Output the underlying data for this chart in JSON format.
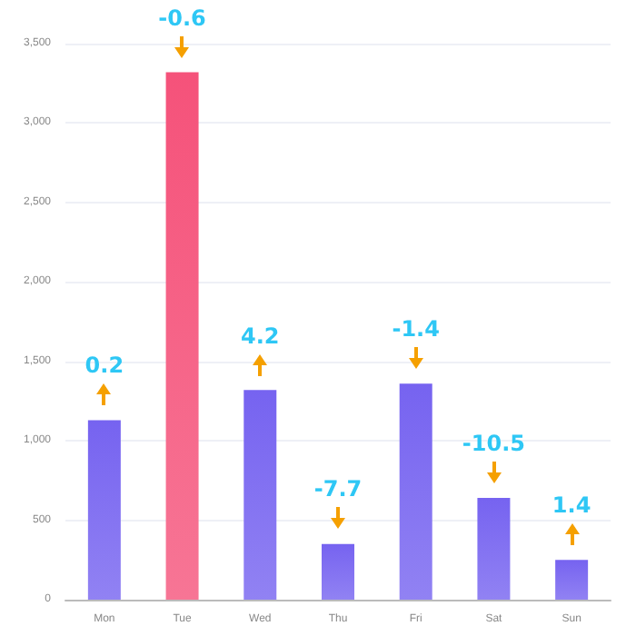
{
  "chart_data": {
    "type": "bar",
    "categories": [
      "Mon",
      "Tue",
      "Wed",
      "Thu",
      "Fri",
      "Sat",
      "Sun"
    ],
    "values": [
      1130,
      3320,
      1320,
      350,
      1360,
      640,
      250
    ],
    "colors": [
      "#7663f0",
      "#f5527a",
      "#7663f0",
      "#7663f0",
      "#7663f0",
      "#7663f0",
      "#7663f0"
    ],
    "ylim": [
      0,
      3500
    ],
    "yticks": [
      0,
      500,
      {
        "value": 1000,
        "label": "1,000"
      },
      {
        "value": 1500,
        "label": "1,500"
      },
      {
        "value": 2000,
        "label": "2,000"
      },
      {
        "value": 2500,
        "label": "2,500"
      },
      {
        "value": 3000,
        "label": "3,000"
      },
      {
        "value": 3500,
        "label": "3,500"
      }
    ],
    "grid": "y",
    "annotations": [
      {
        "text": "0.2",
        "x": "Mon",
        "y": 1130
      },
      {
        "text": "-0.6",
        "x": "Tue",
        "y": 3320
      },
      {
        "text": "4.2",
        "x": "Wed",
        "y": 1320
      },
      {
        "text": "-7.7",
        "x": "Thu",
        "y": 350
      },
      {
        "text": "-1.4",
        "x": "Fri",
        "y": 1360
      },
      {
        "text": "-10.5",
        "x": "Sat",
        "y": 640
      },
      {
        "text": "1.4",
        "x": "Sun",
        "y": 250
      }
    ]
  }
}
